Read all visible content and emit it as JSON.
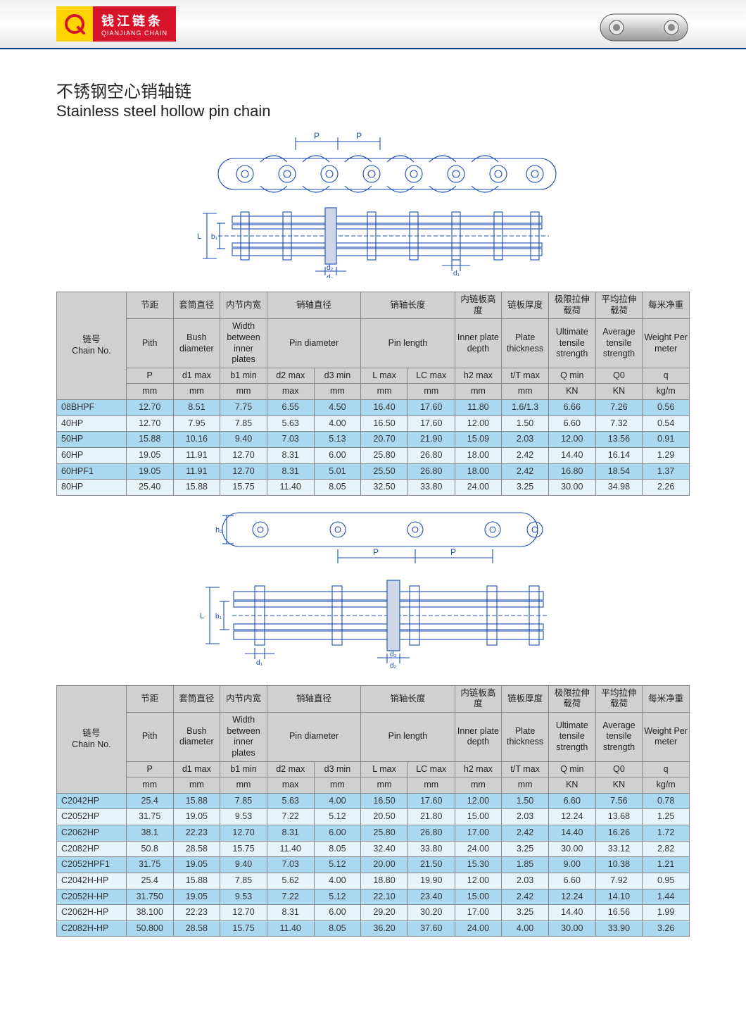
{
  "brand": {
    "cn": "钱江链条",
    "en": "QIANJIANG CHAIN",
    "logo_bg_left": "#ffd400",
    "logo_bg_right": "#d7152a",
    "logo_text_color": "#ffffff"
  },
  "title": {
    "cn": "不锈钢空心销轴链",
    "en": "Stainless steel hollow pin chain"
  },
  "columns": {
    "chain_no": {
      "cn": "链号",
      "en": "Chain No."
    },
    "pitch": {
      "cn": "节距",
      "en": "Pith",
      "sym": "P",
      "unit": "mm"
    },
    "bush": {
      "cn": "套筒直径",
      "en": "Bush diameter",
      "sym": "d1 max",
      "unit": "mm"
    },
    "width": {
      "cn": "内节内宽",
      "en": "Width between inner plates",
      "sym": "b1 min",
      "unit": "mm"
    },
    "pin_d2": {
      "cn": "销轴直径",
      "en": "Pin diameter",
      "sym": "d2 max",
      "unit": "max"
    },
    "pin_d3": {
      "sym": "d3 min",
      "unit": "mm"
    },
    "pin_L": {
      "cn": "销轴长度",
      "en": "Pin length",
      "sym": "L max",
      "unit": "mm"
    },
    "pin_LC": {
      "sym": "LC max",
      "unit": "mm"
    },
    "plate_h": {
      "cn": "内链板高度",
      "en": "Inner plate depth",
      "sym": "h2 max",
      "unit": "mm"
    },
    "plate_t": {
      "cn": "链板厚度",
      "en": "Plate thickness",
      "sym": "t/T max",
      "unit": "mm"
    },
    "ult": {
      "cn": "极限拉伸载荷",
      "en": "Ultimate tensile strength",
      "sym": "Q min",
      "unit": "KN"
    },
    "avg": {
      "cn": "平均拉伸载荷",
      "en": "Average tensile strength",
      "sym": "Q0",
      "unit": "KN"
    },
    "weight": {
      "cn": "每米净重",
      "en": "Weight Per meter",
      "sym": "q",
      "unit": "kg/m"
    }
  },
  "table1_rows": [
    {
      "no": "08BHPF",
      "P": "12.70",
      "d1": "8.51",
      "b1": "7.75",
      "d2": "6.55",
      "d3": "4.50",
      "L": "16.40",
      "LC": "17.60",
      "h2": "11.80",
      "t": "1.6/1.3",
      "Q": "6.66",
      "Q0": "7.26",
      "q": "0.56"
    },
    {
      "no": "40HP",
      "P": "12.70",
      "d1": "7.95",
      "b1": "7.85",
      "d2": "5.63",
      "d3": "4.00",
      "L": "16.50",
      "LC": "17.60",
      "h2": "12.00",
      "t": "1.50",
      "Q": "6.60",
      "Q0": "7.32",
      "q": "0.54"
    },
    {
      "no": "50HP",
      "P": "15.88",
      "d1": "10.16",
      "b1": "9.40",
      "d2": "7.03",
      "d3": "5.13",
      "L": "20.70",
      "LC": "21.90",
      "h2": "15.09",
      "t": "2.03",
      "Q": "12.00",
      "Q0": "13.56",
      "q": "0.91"
    },
    {
      "no": "60HP",
      "P": "19.05",
      "d1": "11.91",
      "b1": "12.70",
      "d2": "8.31",
      "d3": "6.00",
      "L": "25.80",
      "LC": "26.80",
      "h2": "18.00",
      "t": "2.42",
      "Q": "14.40",
      "Q0": "16.14",
      "q": "1.29"
    },
    {
      "no": "60HPF1",
      "P": "19.05",
      "d1": "11.91",
      "b1": "12.70",
      "d2": "8.31",
      "d3": "5.01",
      "L": "25.50",
      "LC": "26.80",
      "h2": "18.00",
      "t": "2.42",
      "Q": "16.80",
      "Q0": "18.54",
      "q": "1.37"
    },
    {
      "no": "80HP",
      "P": "25.40",
      "d1": "15.88",
      "b1": "15.75",
      "d2": "11.40",
      "d3": "8.05",
      "L": "32.50",
      "LC": "33.80",
      "h2": "24.00",
      "t": "3.25",
      "Q": "30.00",
      "Q0": "34.98",
      "q": "2.26"
    }
  ],
  "table2_rows": [
    {
      "no": "C2042HP",
      "P": "25.4",
      "d1": "15.88",
      "b1": "7.85",
      "d2": "5.63",
      "d3": "4.00",
      "L": "16.50",
      "LC": "17.60",
      "h2": "12.00",
      "t": "1.50",
      "Q": "6.60",
      "Q0": "7.56",
      "q": "0.78"
    },
    {
      "no": "C2052HP",
      "P": "31.75",
      "d1": "19.05",
      "b1": "9.53",
      "d2": "7.22",
      "d3": "5.12",
      "L": "20.50",
      "LC": "21.80",
      "h2": "15.00",
      "t": "2.03",
      "Q": "12.24",
      "Q0": "13.68",
      "q": "1.25"
    },
    {
      "no": "C2062HP",
      "P": "38.1",
      "d1": "22.23",
      "b1": "12.70",
      "d2": "8.31",
      "d3": "6.00",
      "L": "25.80",
      "LC": "26.80",
      "h2": "17.00",
      "t": "2.42",
      "Q": "14.40",
      "Q0": "16.26",
      "q": "1.72"
    },
    {
      "no": "C2082HP",
      "P": "50.8",
      "d1": "28.58",
      "b1": "15.75",
      "d2": "11.40",
      "d3": "8.05",
      "L": "32.40",
      "LC": "33.80",
      "h2": "24.00",
      "t": "3.25",
      "Q": "30.00",
      "Q0": "33.12",
      "q": "2.82"
    },
    {
      "no": "C2052HPF1",
      "P": "31.75",
      "d1": "19.05",
      "b1": "9.40",
      "d2": "7.03",
      "d3": "5.12",
      "L": "20.00",
      "LC": "21.50",
      "h2": "15.30",
      "t": "1.85",
      "Q": "9.00",
      "Q0": "10.38",
      "q": "1.21"
    },
    {
      "no": "C2042H-HP",
      "P": "25.4",
      "d1": "15.88",
      "b1": "7.85",
      "d2": "5.62",
      "d3": "4.00",
      "L": "18.80",
      "LC": "19.90",
      "h2": "12.00",
      "t": "2.03",
      "Q": "6.60",
      "Q0": "7.92",
      "q": "0.95"
    },
    {
      "no": "C2052H-HP",
      "P": "31.750",
      "d1": "19.05",
      "b1": "9.53",
      "d2": "7.22",
      "d3": "5.12",
      "L": "22.10",
      "LC": "23.40",
      "h2": "15.00",
      "t": "2.42",
      "Q": "12.24",
      "Q0": "14.10",
      "q": "1.44"
    },
    {
      "no": "C2062H-HP",
      "P": "38.100",
      "d1": "22.23",
      "b1": "12.70",
      "d2": "8.31",
      "d3": "6.00",
      "L": "29.20",
      "LC": "30.20",
      "h2": "17.00",
      "t": "3.25",
      "Q": "14.40",
      "Q0": "16.56",
      "q": "1.99"
    },
    {
      "no": "C2082H-HP",
      "P": "50.800",
      "d1": "28.58",
      "b1": "15.75",
      "d2": "11.40",
      "d3": "8.05",
      "L": "36.20",
      "LC": "37.60",
      "h2": "24.00",
      "t": "4.00",
      "Q": "30.00",
      "Q0": "33.90",
      "q": "3.26"
    }
  ],
  "colors": {
    "header_bg": "#d0d0d0",
    "row_odd": "#a9d8ef",
    "row_even": "#e6f5fb",
    "border": "#888888",
    "accent_bar": "#003a8c"
  },
  "diagram": {
    "stroke": "#1b4db3",
    "stroke_width": 1.2,
    "labels_top": [
      "P",
      "P"
    ],
    "dim_labels": [
      "L",
      "b₁",
      "d₃",
      "d₂",
      "h₂",
      "d₁"
    ]
  }
}
